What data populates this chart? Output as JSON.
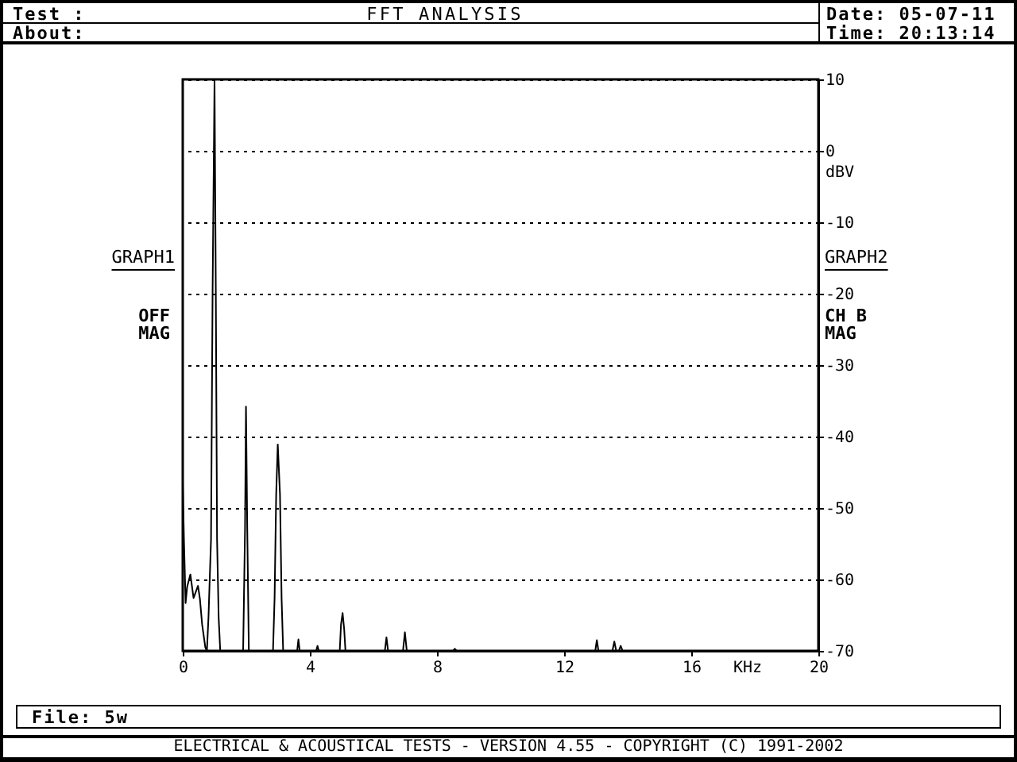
{
  "chart_data": {
    "type": "line",
    "title": "FFT ANALYSIS",
    "xlabel": "KHz",
    "ylabel": "dBV",
    "x": [
      0,
      0.04,
      0.09,
      0.14,
      0.24,
      0.34,
      0.48,
      0.54,
      0.61,
      0.71,
      0.76,
      0.81,
      0.89,
      0.94,
      1,
      1.04,
      1.08,
      1.13,
      1.18,
      1.9,
      1.96,
      1.99,
      2.03,
      2.08,
      2.84,
      2.89,
      2.94,
      2.99,
      3.06,
      3.11,
      3.16,
      3.6,
      3.64,
      3.68,
      4.2,
      4.24,
      4.28,
      4.94,
      4.98,
      5.03,
      5.08,
      5.12,
      6.36,
      6.41,
      6.46,
      6.93,
      6.99,
      7.05,
      8.5,
      8.56,
      8.62,
      12.98,
      13.03,
      13.08,
      13.52,
      13.58,
      13.64,
      13.72,
      13.78,
      13.84,
      20
    ],
    "series": [
      {
        "color": "#000000",
        "values": [
          -46.4,
          -54.8,
          -63.3,
          -61,
          -59.3,
          -62.6,
          -60.9,
          -62.7,
          -66.3,
          -69.5,
          -70,
          -65.3,
          -54.4,
          -19.3,
          10,
          -19.3,
          -54.4,
          -65.3,
          -70,
          -70,
          -52.9,
          -35.8,
          -52.9,
          -70,
          -70,
          -62.6,
          -48.1,
          -41.1,
          -48.1,
          -62.6,
          -70,
          -70,
          -68.4,
          -70,
          -70,
          -69.3,
          -70,
          -70,
          -66.3,
          -64.7,
          -67,
          -70,
          -70,
          -68.1,
          -70,
          -70,
          -67.4,
          -70,
          -70,
          -69.7,
          -70,
          -70,
          -68.5,
          -70,
          -70,
          -68.7,
          -70,
          -70,
          -69.3,
          -70,
          -70
        ]
      }
    ],
    "xlim": [
      0,
      20
    ],
    "xticks": [
      0,
      4,
      8,
      12,
      16,
      20
    ],
    "ylim": [
      -70,
      10
    ],
    "yticks": [
      -70,
      -60,
      -50,
      -40,
      -30,
      -20,
      -10,
      0,
      10
    ],
    "grid": "y",
    "annotations": [
      "Test :",
      "About:",
      "Date: 05-07-11",
      "Time: 20:13:14",
      "GRAPH1",
      "OFF",
      "MAG",
      "GRAPH2",
      "CH B",
      "MAG",
      "File: 5w",
      "ELECTRICAL & ACOUSTICAL TESTS - VERSION 4.55 - COPYRIGHT (C) 1991-2002"
    ]
  }
}
